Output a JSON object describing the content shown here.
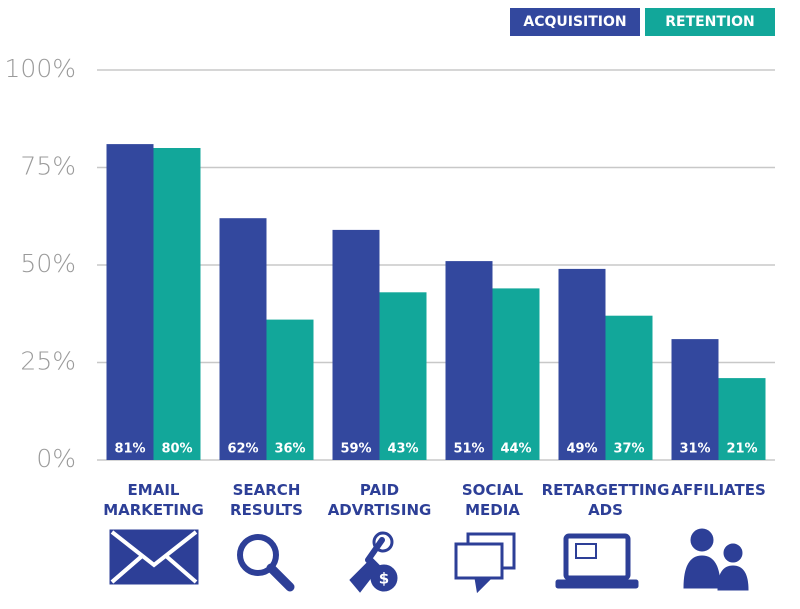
{
  "chart_data": {
    "type": "bar",
    "categories": [
      "EMAIL MARKETING",
      "SEARCH RESULTS",
      "PAID ADVRTISING",
      "SOCIAL MEDIA",
      "RETARGETTING ADS",
      "AFFILIATES"
    ],
    "series": [
      {
        "name": "ACQUISITION",
        "color": "#33489e",
        "values": [
          81,
          62,
          59,
          51,
          49,
          31
        ],
        "value_labels": [
          "81%",
          "62%",
          "59%",
          "51%",
          "49%",
          "31%"
        ]
      },
      {
        "name": "RETENTION",
        "color": "#12a79a",
        "values": [
          80,
          36,
          43,
          44,
          37,
          21
        ],
        "value_labels": [
          "80%",
          "36%",
          "43%",
          "44%",
          "37%",
          "21%"
        ]
      }
    ],
    "ylim": [
      0,
      100
    ],
    "yticks": [
      {
        "value": 0,
        "label": "0%"
      },
      {
        "value": 25,
        "label": "25%"
      },
      {
        "value": 50,
        "label": "50%"
      },
      {
        "value": 75,
        "label": "75%"
      },
      {
        "value": 100,
        "label": "100%"
      }
    ],
    "grid": true,
    "legend": "top-right"
  }
}
